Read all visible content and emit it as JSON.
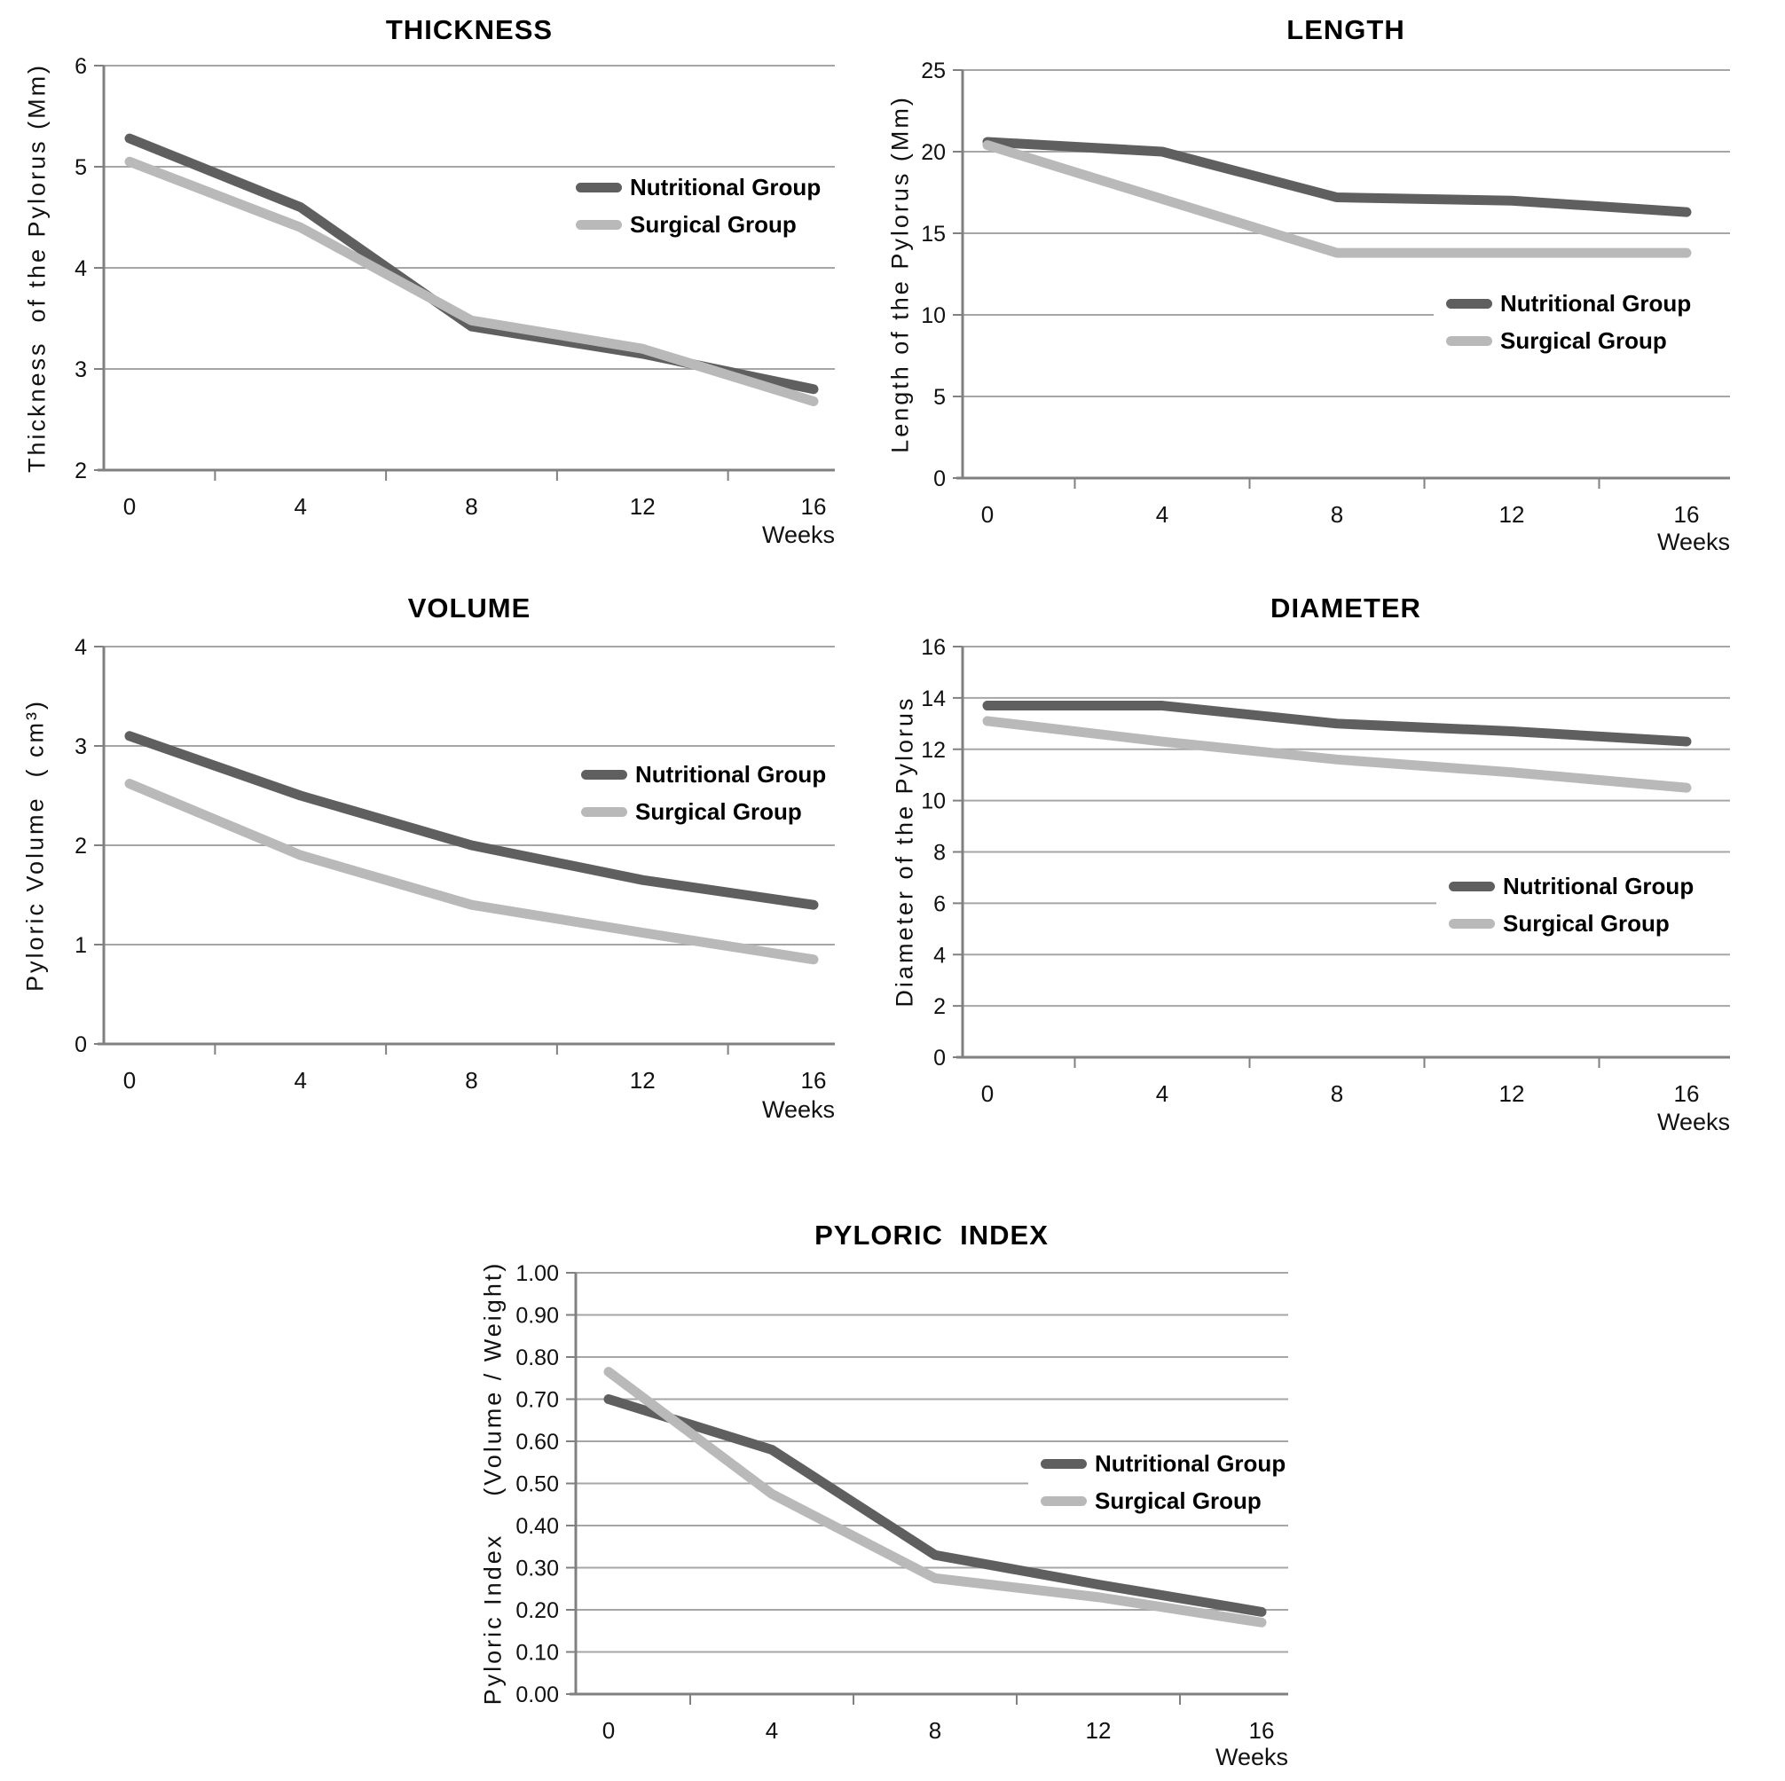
{
  "colors": {
    "nutritional": "#5f5f5f",
    "surgical": "#b9b9b9",
    "grid": "#a6a6a6",
    "axis": "#808080",
    "text": "#000000",
    "background": "#ffffff"
  },
  "chart_data": [
    {
      "id": "thickness",
      "type": "line",
      "title": "THICKNESS",
      "xlabel": "Weeks",
      "ylabel": "Thickness  of the Pylorus (Mm)",
      "x_categories": [
        "0",
        "4",
        "8",
        "12",
        "16"
      ],
      "x_weeks": [
        0,
        4,
        8,
        12,
        16
      ],
      "ylim": [
        2,
        6
      ],
      "ystep": 1,
      "y_decimals": 0,
      "grid": true,
      "legend_position": "inside-right",
      "series": [
        {
          "name": "Nutritional Group",
          "color_key": "nutritional",
          "values": [
            5.28,
            4.6,
            3.42,
            3.15,
            2.8
          ]
        },
        {
          "name": "Surgical Group",
          "color_key": "surgical",
          "values": [
            5.05,
            4.4,
            3.48,
            3.2,
            2.68
          ]
        }
      ]
    },
    {
      "id": "length",
      "type": "line",
      "title": "LENGTH",
      "xlabel": "Weeks",
      "ylabel": "Length of the Pylorus (Mm)",
      "x_categories": [
        "0",
        "4",
        "8",
        "12",
        "16"
      ],
      "x_weeks": [
        0,
        4,
        8,
        12,
        16
      ],
      "ylim": [
        0,
        25
      ],
      "ystep": 5,
      "y_decimals": 0,
      "grid": true,
      "legend_position": "inside-right",
      "series": [
        {
          "name": "Nutritional Group",
          "color_key": "nutritional",
          "values": [
            20.6,
            20.0,
            17.2,
            17.0,
            16.3
          ]
        },
        {
          "name": "Surgical Group",
          "color_key": "surgical",
          "values": [
            20.4,
            17.1,
            13.8,
            13.8,
            13.8
          ]
        }
      ]
    },
    {
      "id": "volume",
      "type": "line",
      "title": "VOLUME",
      "xlabel": "Weeks",
      "ylabel": "Pyloric Volume  ( cm³)",
      "x_categories": [
        "0",
        "4",
        "8",
        "12",
        "16"
      ],
      "x_weeks": [
        0,
        4,
        8,
        12,
        16
      ],
      "ylim": [
        0,
        4
      ],
      "ystep": 1,
      "y_decimals": 0,
      "grid": true,
      "legend_position": "inside-right",
      "series": [
        {
          "name": "Nutritional Group",
          "color_key": "nutritional",
          "values": [
            3.1,
            2.5,
            2.0,
            1.65,
            1.4
          ]
        },
        {
          "name": "Surgical Group",
          "color_key": "surgical",
          "values": [
            2.62,
            1.9,
            1.4,
            1.12,
            0.85
          ]
        }
      ]
    },
    {
      "id": "diameter",
      "type": "line",
      "title": "DIAMETER",
      "xlabel": "Weeks",
      "ylabel": "Diameter of the Pylorus",
      "x_categories": [
        "0",
        "4",
        "8",
        "12",
        "16"
      ],
      "x_weeks": [
        0,
        4,
        8,
        12,
        16
      ],
      "ylim": [
        0,
        16
      ],
      "ystep": 2,
      "y_decimals": 0,
      "grid": true,
      "legend_position": "inside-right",
      "series": [
        {
          "name": "Nutritional Group",
          "color_key": "nutritional",
          "values": [
            13.7,
            13.7,
            13.0,
            12.7,
            12.3
          ]
        },
        {
          "name": "Surgical Group",
          "color_key": "surgical",
          "values": [
            13.1,
            12.3,
            11.6,
            11.1,
            10.5
          ]
        }
      ]
    },
    {
      "id": "index",
      "type": "line",
      "title": "PYLORIC  INDEX",
      "xlabel": "Weeks",
      "ylabel": "Pyloric Index    (Volume / Weight)",
      "x_categories": [
        "0",
        "4",
        "8",
        "12",
        "16"
      ],
      "x_weeks": [
        0,
        4,
        8,
        12,
        16
      ],
      "ylim": [
        0,
        1
      ],
      "ystep": 0.1,
      "y_decimals": 2,
      "grid": true,
      "legend_position": "inside-right",
      "series": [
        {
          "name": "Nutritional Group",
          "color_key": "nutritional",
          "values": [
            0.7,
            0.58,
            0.33,
            0.26,
            0.195
          ]
        },
        {
          "name": "Surgical Group",
          "color_key": "surgical",
          "values": [
            0.765,
            0.475,
            0.275,
            0.23,
            0.17
          ]
        }
      ]
    }
  ]
}
